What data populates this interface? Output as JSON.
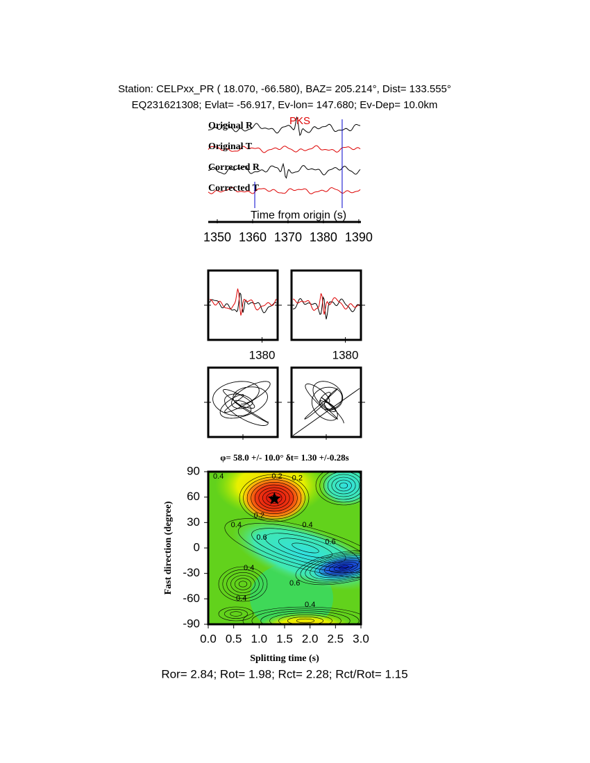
{
  "header": {
    "line1": "Station: CELPxx_PR (  18.070,  -66.580), BAZ=  205.214°, Dist=  133.555°",
    "line2": "EQ231621308; Evlat= -56.917, Ev-lon= 147.680; Ev-Dep= 10.0km"
  },
  "chart_data": [
    {
      "type": "waveform",
      "phase": "PKS",
      "traces": [
        "Original R",
        "Original T",
        "Corrected R",
        "Corrected T"
      ],
      "xlabel": "Time from origin (s)",
      "xlim": [
        1347,
        1391
      ],
      "xticks": [
        1350,
        1360,
        1370,
        1380,
        1390
      ],
      "window": [
        1360.6,
        1385.3
      ]
    },
    {
      "type": "window",
      "xlim": [
        1361,
        1385.5
      ],
      "xticks": [
        1380
      ]
    },
    {
      "type": "window",
      "xlim": [
        1361,
        1385.5
      ],
      "xticks": [
        1380
      ]
    },
    {
      "type": "contour",
      "title": "φ= 58.0 +/- 10.0° δt= 1.30 +/-0.28s",
      "xlabel": "Splitting time (s)",
      "ylabel": "Fast direction (degree)",
      "xlim": [
        0,
        3
      ],
      "ylim": [
        -90,
        90
      ],
      "xticks": [
        {
          "value": 0,
          "label": "0.0"
        },
        0.5,
        {
          "value": 1,
          "label": "1.0"
        },
        1.5,
        {
          "value": 2,
          "label": "2.0"
        },
        2.5,
        {
          "value": 3,
          "label": "3.0"
        }
      ],
      "yticks": [
        -90,
        -60,
        -30,
        0,
        30,
        60,
        90
      ],
      "best": {
        "x": 1.3,
        "y": 58.0
      },
      "contour_labels": [
        {
          "value": 0.4,
          "x": 0.2,
          "y": 84
        },
        {
          "value": 0.2,
          "x": 1.35,
          "y": 84
        },
        {
          "value": 0.2,
          "x": 1.75,
          "y": 82
        },
        {
          "value": 0.2,
          "x": 1.0,
          "y": 38
        },
        {
          "value": 0.4,
          "x": 0.55,
          "y": 27
        },
        {
          "value": 0.4,
          "x": 1.95,
          "y": 27
        },
        {
          "value": 0.6,
          "x": 1.05,
          "y": 12
        },
        {
          "value": 0.6,
          "x": 2.4,
          "y": 7
        },
        {
          "value": 0.4,
          "x": 0.8,
          "y": -24
        },
        {
          "value": 0.6,
          "x": 1.7,
          "y": -42
        },
        {
          "value": 0.4,
          "x": 0.65,
          "y": -60
        },
        {
          "value": 0.4,
          "x": 2.0,
          "y": -67
        }
      ]
    }
  ],
  "footer": "Ror= 2.84; Rot= 1.98; Rct= 2.28; Rct/Rot= 1.15"
}
